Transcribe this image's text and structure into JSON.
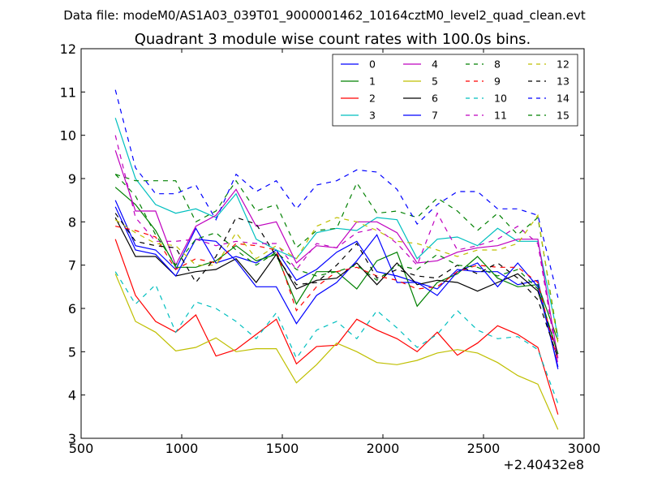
{
  "suptitle": "Data file: modeM0/AS1A03_039T01_9000001462_10164cztM0_level2_quad_clean.evt",
  "chart_data": {
    "type": "line",
    "title": "Quadrant 3 module wise count rates with 100.0s bins.",
    "xlabel": "",
    "ylabel": "",
    "xlim": [
      500,
      3000
    ],
    "ylim": [
      3,
      12
    ],
    "xticks": [
      500,
      1000,
      1500,
      2000,
      2500,
      3000
    ],
    "yticks": [
      3,
      4,
      5,
      6,
      7,
      8,
      9,
      10,
      11,
      12
    ],
    "x_offset_label": "+2.40432e8",
    "legend_position": "top-right",
    "grid": false,
    "x": [
      670,
      770,
      870,
      970,
      1070,
      1170,
      1270,
      1370,
      1470,
      1570,
      1670,
      1770,
      1870,
      1970,
      2070,
      2170,
      2270,
      2370,
      2470,
      2570,
      2670,
      2770,
      2870
    ],
    "series": [
      {
        "name": "0",
        "color": "#0000ff",
        "dash": "solid",
        "values": [
          8.5,
          7.45,
          7.35,
          6.9,
          7.85,
          7.05,
          7.2,
          7.05,
          7.35,
          6.65,
          6.9,
          7.3,
          7.55,
          6.85,
          6.75,
          6.6,
          6.45,
          6.9,
          6.85,
          6.85,
          6.55,
          6.65,
          4.6
        ]
      },
      {
        "name": "1",
        "color": "#008000",
        "dash": "solid",
        "values": [
          8.8,
          8.4,
          7.8,
          6.95,
          6.95,
          7.1,
          7.45,
          7.1,
          7.25,
          6.1,
          6.85,
          6.85,
          6.45,
          7.1,
          7.3,
          6.05,
          6.6,
          6.8,
          7.2,
          6.7,
          6.5,
          6.55,
          5.25
        ]
      },
      {
        "name": "2",
        "color": "#ff0000",
        "dash": "solid",
        "values": [
          7.6,
          6.3,
          5.7,
          5.45,
          5.85,
          4.9,
          5.05,
          5.4,
          5.75,
          4.72,
          5.12,
          5.15,
          5.75,
          5.5,
          5.3,
          5.0,
          5.45,
          4.92,
          5.2,
          5.6,
          5.4,
          5.1,
          3.55
        ]
      },
      {
        "name": "3",
        "color": "#00bfbf",
        "dash": "solid",
        "values": [
          10.4,
          9.0,
          8.4,
          8.2,
          8.3,
          8.1,
          8.65,
          7.6,
          7.35,
          7.15,
          7.75,
          7.85,
          7.8,
          8.1,
          8.05,
          7.15,
          7.6,
          7.65,
          7.45,
          7.85,
          7.55,
          7.55,
          5.35
        ]
      },
      {
        "name": "4",
        "color": "#bf00bf",
        "dash": "solid",
        "values": [
          9.65,
          8.25,
          8.25,
          7.0,
          7.9,
          8.15,
          8.75,
          7.9,
          8.0,
          7.05,
          7.45,
          7.4,
          8.0,
          8.0,
          7.75,
          7.05,
          7.1,
          7.3,
          7.4,
          7.45,
          7.6,
          7.6,
          4.85
        ]
      },
      {
        "name": "5",
        "color": "#bfbf00",
        "dash": "solid",
        "values": [
          6.8,
          5.7,
          5.45,
          5.02,
          5.1,
          5.32,
          5.0,
          5.07,
          5.07,
          4.28,
          4.7,
          5.2,
          5.0,
          4.75,
          4.7,
          4.8,
          4.97,
          5.05,
          4.97,
          4.75,
          4.45,
          4.25,
          3.2
        ]
      },
      {
        "name": "6",
        "color": "#000000",
        "dash": "solid",
        "values": [
          8.1,
          7.2,
          7.2,
          6.75,
          6.85,
          6.9,
          7.15,
          6.6,
          7.25,
          6.45,
          6.65,
          6.7,
          7.05,
          6.55,
          7.05,
          6.55,
          6.65,
          6.6,
          6.4,
          6.6,
          6.8,
          6.4,
          4.95
        ]
      },
      {
        "name": "7",
        "color": "#0000ff",
        "dash": "solid",
        "values": [
          8.35,
          7.35,
          7.25,
          6.75,
          7.6,
          7.55,
          7.1,
          6.5,
          6.5,
          5.65,
          6.3,
          6.6,
          7.1,
          7.7,
          6.6,
          6.6,
          6.3,
          6.85,
          7.05,
          6.5,
          7.05,
          6.5,
          4.65
        ]
      },
      {
        "name": "8",
        "color": "#008000",
        "dash": "dashed",
        "values": [
          9.1,
          8.95,
          8.95,
          8.95,
          8.0,
          8.25,
          8.95,
          8.25,
          8.4,
          7.4,
          7.8,
          7.85,
          8.9,
          8.2,
          8.25,
          8.1,
          8.55,
          8.25,
          7.8,
          8.2,
          7.7,
          8.1,
          5.3
        ]
      },
      {
        "name": "9",
        "color": "#ff0000",
        "dash": "dashed",
        "values": [
          7.9,
          7.8,
          7.65,
          6.9,
          7.15,
          7.05,
          7.5,
          7.45,
          7.35,
          5.95,
          6.5,
          6.85,
          6.95,
          6.75,
          6.65,
          6.45,
          6.5,
          6.85,
          7.0,
          6.95,
          6.95,
          6.6,
          4.75
        ]
      },
      {
        "name": "10",
        "color": "#00bfbf",
        "dash": "dashed",
        "values": [
          6.85,
          6.1,
          6.55,
          5.45,
          6.15,
          6.0,
          5.7,
          5.3,
          5.9,
          4.85,
          5.5,
          5.7,
          5.3,
          5.95,
          5.55,
          5.1,
          5.4,
          5.95,
          5.5,
          5.3,
          5.35,
          5.05,
          3.8
        ]
      },
      {
        "name": "11",
        "color": "#bf00bf",
        "dash": "dashed",
        "values": [
          10.0,
          8.1,
          7.55,
          7.55,
          7.6,
          7.45,
          7.55,
          7.5,
          7.5,
          6.9,
          7.5,
          7.4,
          7.75,
          7.85,
          7.5,
          7.0,
          8.2,
          7.35,
          7.45,
          7.6,
          7.9,
          7.5,
          4.7
        ]
      },
      {
        "name": "12",
        "color": "#bfbf00",
        "dash": "dashed",
        "values": [
          8.05,
          7.75,
          7.5,
          7.45,
          7.0,
          7.0,
          7.75,
          7.15,
          7.45,
          7.15,
          7.9,
          8.1,
          8.0,
          7.8,
          7.55,
          7.5,
          7.35,
          7.2,
          7.35,
          7.35,
          7.5,
          8.15,
          5.2
        ]
      },
      {
        "name": "13",
        "color": "#000000",
        "dash": "dashed",
        "values": [
          8.2,
          7.55,
          7.45,
          7.4,
          6.6,
          7.2,
          8.1,
          7.95,
          7.2,
          6.55,
          6.6,
          7.0,
          7.5,
          6.7,
          6.9,
          6.75,
          6.7,
          7.0,
          6.8,
          7.05,
          6.7,
          6.2,
          4.85
        ]
      },
      {
        "name": "14",
        "color": "#0000ff",
        "dash": "dashed",
        "values": [
          11.05,
          9.25,
          8.65,
          8.65,
          8.85,
          8.05,
          9.1,
          8.7,
          8.95,
          8.3,
          8.85,
          8.95,
          9.2,
          9.15,
          8.75,
          7.95,
          8.4,
          8.7,
          8.7,
          8.3,
          8.3,
          8.15,
          6.25
        ]
      },
      {
        "name": "15",
        "color": "#008000",
        "dash": "dashed",
        "values": [
          9.1,
          8.6,
          7.7,
          7.0,
          7.6,
          7.75,
          7.35,
          7.0,
          7.3,
          6.9,
          6.75,
          6.85,
          7.0,
          6.65,
          7.0,
          6.9,
          7.25,
          7.0,
          6.95,
          6.75,
          6.9,
          6.45,
          4.95
        ]
      }
    ]
  }
}
